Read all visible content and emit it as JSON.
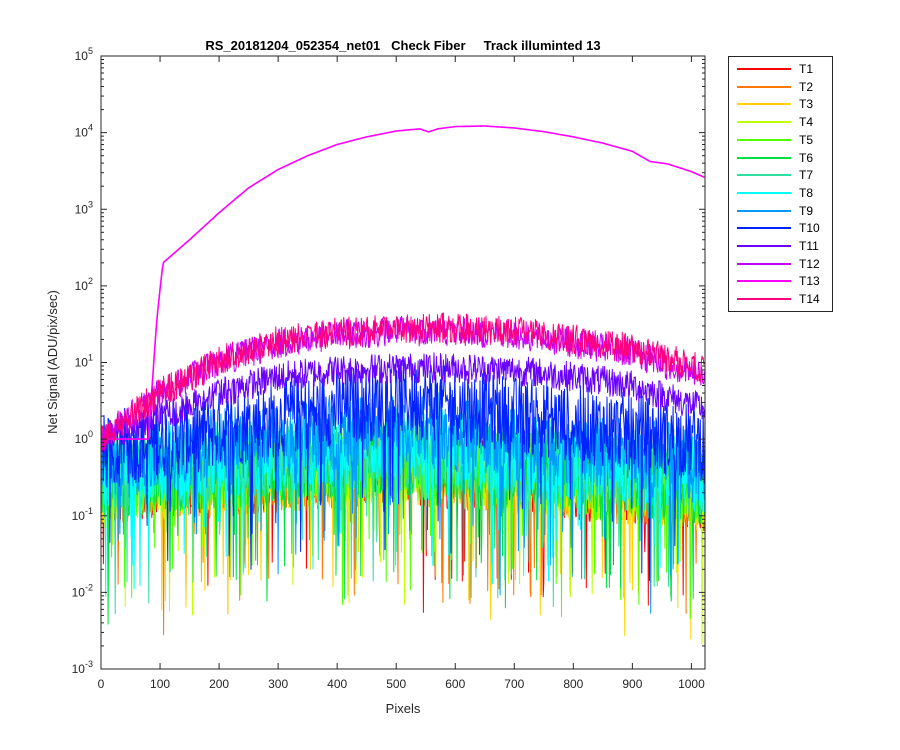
{
  "chart_data": {
    "type": "line",
    "title": "RS_20181204_052354_net01   Check Fiber     Track illuminted 13",
    "xlabel": "Pixels",
    "ylabel": "Net Signal (ADU/pix/sec)",
    "xlim": [
      0,
      1023
    ],
    "ylim": [
      0.001,
      100000
    ],
    "yscale": "log",
    "xticks": [
      "0",
      "100",
      "200",
      "300",
      "400",
      "500",
      "600",
      "700",
      "800",
      "900",
      "1000"
    ],
    "yticks": [
      {
        "base": "10",
        "exp": "-3"
      },
      {
        "base": "10",
        "exp": "-2"
      },
      {
        "base": "10",
        "exp": "-1"
      },
      {
        "base": "10",
        "exp": "0"
      },
      {
        "base": "10",
        "exp": "1"
      },
      {
        "base": "10",
        "exp": "2"
      },
      {
        "base": "10",
        "exp": "3"
      },
      {
        "base": "10",
        "exp": "4"
      },
      {
        "base": "10",
        "exp": "5"
      }
    ],
    "legend_position": "outside-right-top",
    "series": [
      {
        "name": "T1",
        "color": "#ff0000",
        "noise": true,
        "profile": [
          [
            0,
            0.25
          ],
          [
            500,
            0.45
          ],
          [
            1023,
            0.2
          ]
        ]
      },
      {
        "name": "T2",
        "color": "#ff7700",
        "noise": true,
        "profile": [
          [
            0,
            0.25
          ],
          [
            500,
            0.45
          ],
          [
            1023,
            0.2
          ]
        ]
      },
      {
        "name": "T3",
        "color": "#ffd400",
        "noise": true,
        "profile": [
          [
            0,
            0.25
          ],
          [
            500,
            0.45
          ],
          [
            1023,
            0.2
          ]
        ]
      },
      {
        "name": "T4",
        "color": "#bfff00",
        "noise": true,
        "profile": [
          [
            0,
            0.28
          ],
          [
            500,
            0.5
          ],
          [
            1023,
            0.22
          ]
        ]
      },
      {
        "name": "T5",
        "color": "#55ff00",
        "noise": true,
        "profile": [
          [
            0,
            0.3
          ],
          [
            500,
            0.55
          ],
          [
            1023,
            0.25
          ]
        ]
      },
      {
        "name": "T6",
        "color": "#00e040",
        "noise": true,
        "profile": [
          [
            0,
            0.3
          ],
          [
            500,
            0.6
          ],
          [
            1023,
            0.25
          ]
        ]
      },
      {
        "name": "T7",
        "color": "#2ee0a0",
        "noise": true,
        "profile": [
          [
            0,
            0.35
          ],
          [
            500,
            0.7
          ],
          [
            1023,
            0.3
          ]
        ]
      },
      {
        "name": "T8",
        "color": "#00ffff",
        "noise": true,
        "profile": [
          [
            0,
            0.4
          ],
          [
            500,
            0.9
          ],
          [
            1023,
            0.35
          ]
        ]
      },
      {
        "name": "T9",
        "color": "#0099ff",
        "noise": true,
        "profile": [
          [
            0,
            0.5
          ],
          [
            500,
            1.5
          ],
          [
            1023,
            0.45
          ]
        ]
      },
      {
        "name": "T10",
        "color": "#0022ff",
        "noise": true,
        "profile": [
          [
            0,
            0.7
          ],
          [
            500,
            3.5
          ],
          [
            1023,
            0.9
          ]
        ]
      },
      {
        "name": "T11",
        "color": "#6a00ff",
        "noise": true,
        "profile": [
          [
            0,
            1.0
          ],
          [
            100,
            2.0
          ],
          [
            200,
            4.0
          ],
          [
            300,
            6.5
          ],
          [
            400,
            8.0
          ],
          [
            500,
            8.5
          ],
          [
            600,
            8.5
          ],
          [
            700,
            8.0
          ],
          [
            800,
            6.5
          ],
          [
            900,
            5.0
          ],
          [
            1023,
            2.5
          ]
        ]
      },
      {
        "name": "T12",
        "color": "#c400ff",
        "noise": true,
        "profile": [
          [
            0,
            1.0
          ],
          [
            100,
            4.0
          ],
          [
            200,
            10.0
          ],
          [
            300,
            18.0
          ],
          [
            400,
            23.0
          ],
          [
            500,
            26.0
          ],
          [
            600,
            26.0
          ],
          [
            700,
            23.0
          ],
          [
            800,
            18.0
          ],
          [
            900,
            13.0
          ],
          [
            1023,
            6.5
          ]
        ]
      },
      {
        "name": "T13",
        "color": "#ff00ff",
        "noise": false,
        "profile": [
          [
            0,
            1.0
          ],
          [
            80,
            1.0
          ],
          [
            95,
            40
          ],
          [
            105,
            200
          ],
          [
            150,
            400
          ],
          [
            200,
            900
          ],
          [
            250,
            1900
          ],
          [
            300,
            3300
          ],
          [
            350,
            5000
          ],
          [
            400,
            7000
          ],
          [
            450,
            8800
          ],
          [
            500,
            10500
          ],
          [
            540,
            11200
          ],
          [
            555,
            10200
          ],
          [
            570,
            11200
          ],
          [
            600,
            12000
          ],
          [
            650,
            12200
          ],
          [
            700,
            11500
          ],
          [
            750,
            10300
          ],
          [
            800,
            8800
          ],
          [
            850,
            7300
          ],
          [
            900,
            5700
          ],
          [
            930,
            4200
          ],
          [
            960,
            3900
          ],
          [
            1000,
            3100
          ],
          [
            1023,
            2600
          ]
        ]
      },
      {
        "name": "T14",
        "color": "#ff0080",
        "noise": true,
        "profile": [
          [
            0,
            1.0
          ],
          [
            100,
            4.0
          ],
          [
            200,
            10.5
          ],
          [
            300,
            19.0
          ],
          [
            400,
            24.5
          ],
          [
            500,
            28.0
          ],
          [
            600,
            28.5
          ],
          [
            700,
            25.5
          ],
          [
            800,
            20.5
          ],
          [
            900,
            15.0
          ],
          [
            1023,
            8.0
          ]
        ]
      }
    ]
  }
}
